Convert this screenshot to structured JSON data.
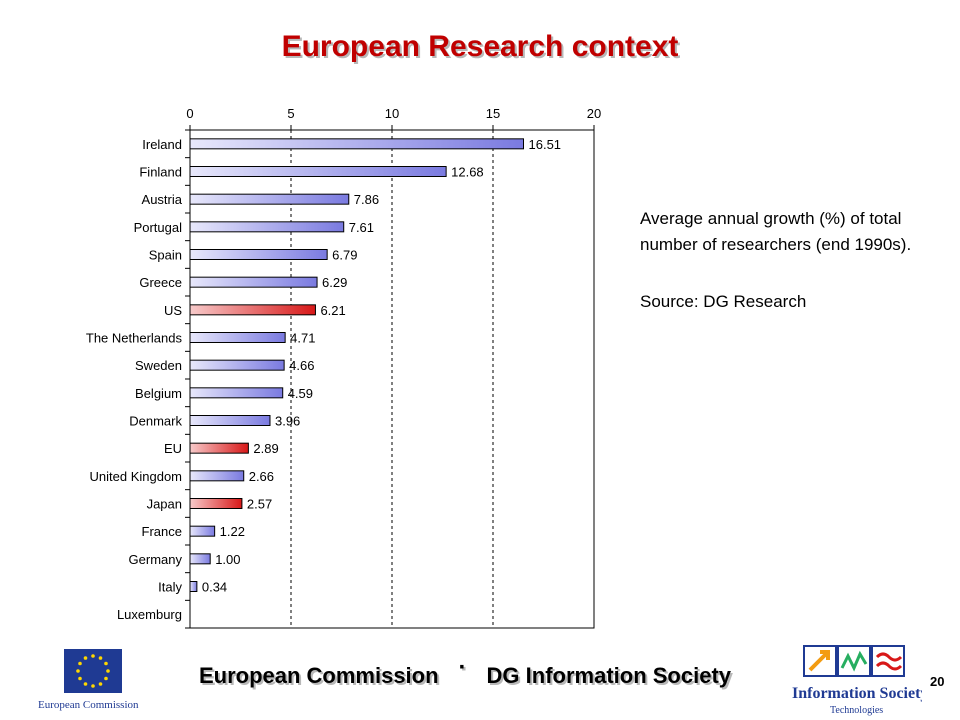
{
  "slide": {
    "title": "European Research context",
    "page_number": "20"
  },
  "note": {
    "description": "Average annual growth (%) of total number of researchers (end 1990s).",
    "source": "Source: DG Research"
  },
  "footer": {
    "left": "European Commission",
    "separator": "·",
    "right": "DG Information Society"
  },
  "logos": {
    "ec_caption": "European Commission",
    "ist_line1": "Information Society",
    "ist_line2": "Technologies"
  },
  "colors": {
    "title": "#c00000",
    "bar_default": "#8c8ce6",
    "bar_highlight": "#e02020"
  },
  "chart_data": {
    "type": "bar",
    "orientation": "horizontal",
    "categories": [
      "Ireland",
      "Finland",
      "Austria",
      "Portugal",
      "Spain",
      "Greece",
      "US",
      "The Netherlands",
      "Sweden",
      "Belgium",
      "Denmark",
      "EU",
      "United Kingdom",
      "Japan",
      "France",
      "Germany",
      "Italy",
      "Luxemburg"
    ],
    "values": [
      16.51,
      12.68,
      7.86,
      7.61,
      6.79,
      6.29,
      6.21,
      4.71,
      4.66,
      4.59,
      3.96,
      2.89,
      2.66,
      2.57,
      1.22,
      1.0,
      0.34,
      null
    ],
    "value_labels": [
      "16.51",
      "12.68",
      "7.86",
      "7.61",
      "6.79",
      "6.29",
      "6.21",
      "4.71",
      "4.66",
      "4.59",
      "3.96",
      "2.89",
      "2.66",
      "2.57",
      "1.22",
      "1.00",
      "0.34",
      ""
    ],
    "highlighted": [
      "US",
      "EU",
      "Japan"
    ],
    "x_ticks": [
      0,
      5,
      10,
      15,
      20
    ],
    "xlim": [
      0,
      20
    ],
    "x_axis_position": "top",
    "grid": "dashed vertical at 5, 10, 15",
    "title": "",
    "xlabel": "",
    "ylabel": ""
  }
}
